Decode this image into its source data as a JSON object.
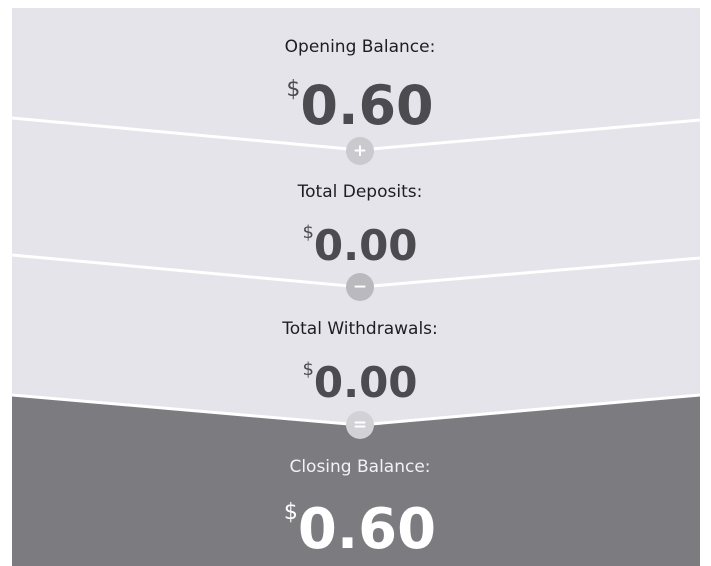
{
  "sections": [
    {
      "label": "Opening Balance:",
      "currency": "$",
      "amount": "0.60"
    },
    {
      "label": "Total Deposits:",
      "currency": "$",
      "amount": "0.00"
    },
    {
      "label": "Total Withdrawals:",
      "currency": "$",
      "amount": "0.00"
    },
    {
      "label": "Closing Balance:",
      "currency": "$",
      "amount": "0.60"
    }
  ],
  "operators": [
    "+",
    "−",
    "="
  ]
}
